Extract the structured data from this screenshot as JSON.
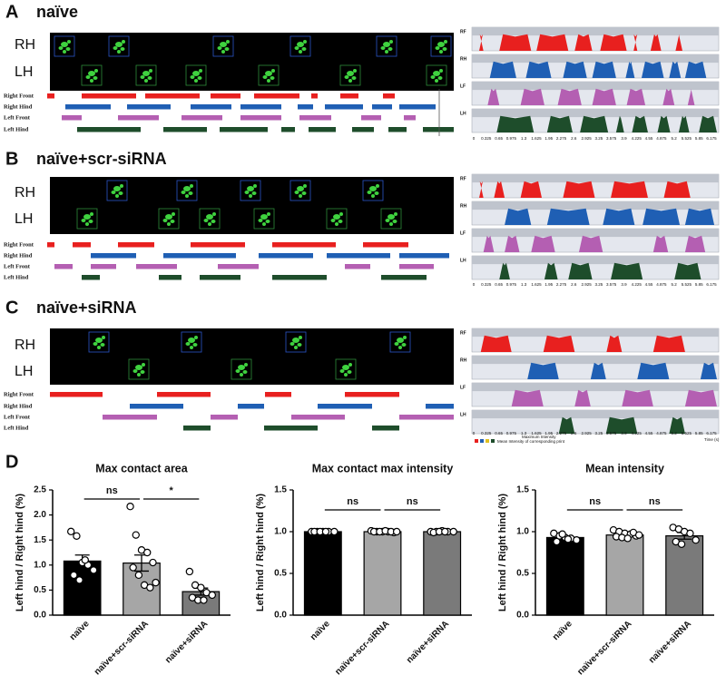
{
  "panels": [
    {
      "label": "A",
      "title": "naïve",
      "paw_labels": [
        "RH",
        "LH"
      ],
      "gait_rows": [
        "Right Front",
        "Right Hind",
        "Left Front",
        "Left Hind"
      ],
      "trace_labels": [
        "RF",
        "RH",
        "LF",
        "LH"
      ]
    },
    {
      "label": "B",
      "title": "naïve+scr-siRNA",
      "paw_labels": [
        "RH",
        "LH"
      ],
      "gait_rows": [
        "Right Front",
        "Right Hind",
        "Left Front",
        "Left Hind"
      ],
      "trace_labels": [
        "RF",
        "RH",
        "LF",
        "LH"
      ]
    },
    {
      "label": "C",
      "title": "naïve+siRNA",
      "paw_labels": [
        "RH",
        "LH"
      ],
      "gait_rows": [
        "Right Front",
        "Right Hind",
        "Left Front",
        "Left Hind"
      ],
      "trace_labels": [
        "RF",
        "RH",
        "LF",
        "LH"
      ]
    }
  ],
  "time_ticks": [
    0,
    0.325,
    0.65,
    0.975,
    1.3,
    1.625,
    1.95,
    2.275,
    2.6,
    2.925,
    3.25,
    3.575,
    3.9,
    4.225,
    4.55,
    4.875,
    5.2,
    5.525,
    5.85,
    6.175
  ],
  "trace_legend": [
    "Maximum Intensity",
    "Mean Intensity of corresponding print"
  ],
  "time_label": "Time (s)",
  "panel_d_label": "D",
  "chart_data": [
    {
      "type": "bar",
      "title": "Max contact area",
      "y_label": "Left hind / Right hind (%)",
      "categories": [
        "naïve",
        "naïve+scr-siRNA",
        "naïve+siRNA"
      ],
      "values": [
        1.08,
        1.04,
        0.47
      ],
      "errors": [
        0.12,
        0.16,
        0.07
      ],
      "points": [
        [
          1.67,
          1.58,
          1.05,
          1.0,
          0.9,
          0.8,
          0.7,
          1.1
        ],
        [
          2.17,
          1.6,
          1.3,
          1.25,
          1.05,
          0.95,
          0.8,
          0.6,
          0.55,
          0.65
        ],
        [
          0.87,
          0.6,
          0.55,
          0.45,
          0.4,
          0.35,
          0.3,
          0.3
        ]
      ],
      "colors": [
        "#000000",
        "#a6a6a6",
        "#7a7a7a"
      ],
      "ylim": [
        0,
        2.5
      ],
      "yticks": [
        {
          "value": 0,
          "label": "0.0"
        },
        {
          "value": 0.5,
          "label": "0.5"
        },
        {
          "value": 1,
          "label": "1.0"
        },
        {
          "value": 1.5,
          "label": "1.5"
        },
        {
          "value": 2,
          "label": "2.0"
        },
        {
          "value": 2.5,
          "label": "2.5"
        }
      ],
      "annotations": [
        {
          "text": "ns",
          "between": [
            0,
            1
          ]
        },
        {
          "text": "*",
          "between": [
            1,
            2
          ]
        }
      ]
    },
    {
      "type": "bar",
      "title": "Max contact max intensity",
      "y_label": "Left hind / Right hind (%)",
      "categories": [
        "naïve",
        "naïve+scr-siRNA",
        "naïve+siRNA"
      ],
      "values": [
        1.0,
        1.0,
        1.0
      ],
      "errors": [
        0.005,
        0.005,
        0.005
      ],
      "points": [
        [
          1,
          1,
          1,
          1,
          1,
          1,
          1,
          1
        ],
        [
          1.01,
          1,
          1,
          1,
          0.99,
          1,
          1,
          1.01,
          1,
          1
        ],
        [
          1,
          1,
          1.01,
          1,
          1,
          0.99,
          1,
          1
        ]
      ],
      "colors": [
        "#000000",
        "#a6a6a6",
        "#7a7a7a"
      ],
      "ylim": [
        0,
        1.5
      ],
      "yticks": [
        {
          "value": 0,
          "label": "0.0"
        },
        {
          "value": 0.5,
          "label": "0.5"
        },
        {
          "value": 1,
          "label": "1.0"
        },
        {
          "value": 1.5,
          "label": "1.5"
        }
      ],
      "annotations": [
        {
          "text": "ns",
          "between": [
            0,
            1
          ]
        },
        {
          "text": "ns",
          "between": [
            1,
            2
          ]
        }
      ]
    },
    {
      "type": "bar",
      "title": "Mean intensity",
      "y_label": "Left hind / Right hind (%)",
      "categories": [
        "naïve",
        "naïve+scr-siRNA",
        "naïve+siRNA"
      ],
      "values": [
        0.93,
        0.96,
        0.95
      ],
      "errors": [
        0.02,
        0.02,
        0.04
      ],
      "points": [
        [
          0.98,
          0.95,
          0.93,
          0.92,
          0.9,
          0.88,
          0.97,
          0.91
        ],
        [
          1.02,
          1.0,
          0.98,
          0.97,
          0.95,
          0.94,
          0.93,
          0.92,
          0.99,
          0.96
        ],
        [
          1.05,
          1.03,
          1.0,
          0.98,
          0.9,
          0.88,
          0.85
        ]
      ],
      "colors": [
        "#000000",
        "#a6a6a6",
        "#7a7a7a"
      ],
      "ylim": [
        0,
        1.5
      ],
      "yticks": [
        {
          "value": 0,
          "label": "0.0"
        },
        {
          "value": 0.5,
          "label": "0.5"
        },
        {
          "value": 1,
          "label": "1.0"
        },
        {
          "value": 1.5,
          "label": "1.5"
        }
      ],
      "annotations": [
        {
          "text": "ns",
          "between": [
            0,
            1
          ]
        },
        {
          "text": "ns",
          "between": [
            1,
            2
          ]
        }
      ]
    }
  ]
}
